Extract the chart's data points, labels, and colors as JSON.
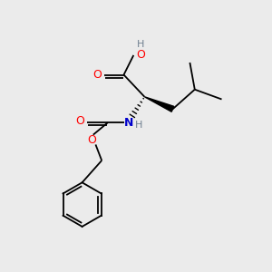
{
  "bg_color": "#ebebeb",
  "atom_colors": {
    "C": "#000000",
    "O": "#ff0000",
    "N": "#0000cc",
    "H": "#708090"
  },
  "fig_size": [
    3.0,
    3.0
  ],
  "dpi": 100
}
